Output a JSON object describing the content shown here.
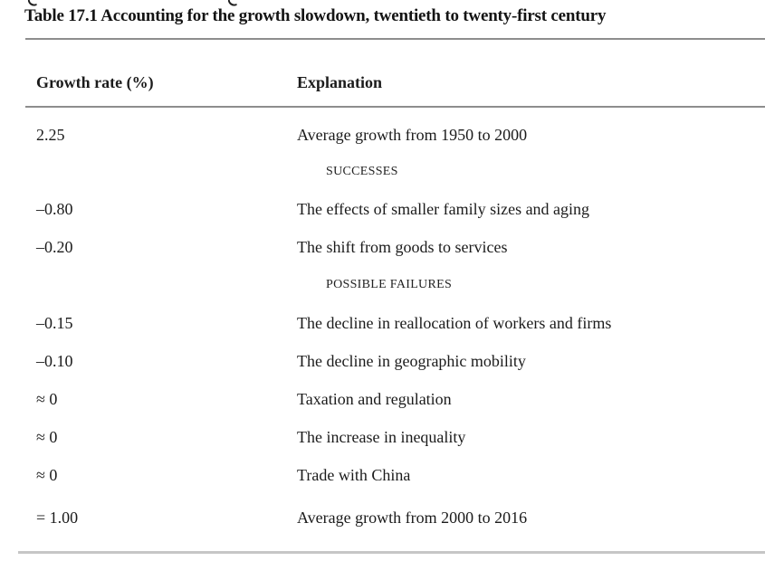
{
  "title": "Table 17.1 Accounting for the growth slowdown, twentieth to twenty-first century",
  "columns": {
    "rate": "Growth rate (%)",
    "explanation": "Explanation"
  },
  "rows": [
    {
      "type": "data",
      "rate": "2.25",
      "explanation": "Average growth from 1950 to 2000"
    },
    {
      "type": "section",
      "label": "SUCCESSES"
    },
    {
      "type": "data",
      "rate": "–0.80",
      "explanation": "The effects of smaller family sizes and aging"
    },
    {
      "type": "data",
      "rate": "–0.20",
      "explanation": "The shift from goods to services"
    },
    {
      "type": "section",
      "label": "POSSIBLE FAILURES"
    },
    {
      "type": "data",
      "rate": "–0.15",
      "explanation": "The decline in reallocation of workers and firms"
    },
    {
      "type": "data",
      "rate": "–0.10",
      "explanation": "The decline in geographic mobility"
    },
    {
      "type": "data",
      "rate": "≈ 0",
      "explanation": "Taxation and regulation"
    },
    {
      "type": "data",
      "rate": "≈ 0",
      "explanation": "The increase in inequality"
    },
    {
      "type": "data",
      "rate": "≈ 0",
      "explanation": "Trade with China"
    },
    {
      "type": "data",
      "rate": "= 1.00",
      "explanation": "Average growth from 2000 to 2016"
    }
  ],
  "colors": {
    "background": "#ffffff",
    "text": "#1b1b1b",
    "rule_dark": "#8d8d8d",
    "rule_light": "#c6c6c6"
  }
}
